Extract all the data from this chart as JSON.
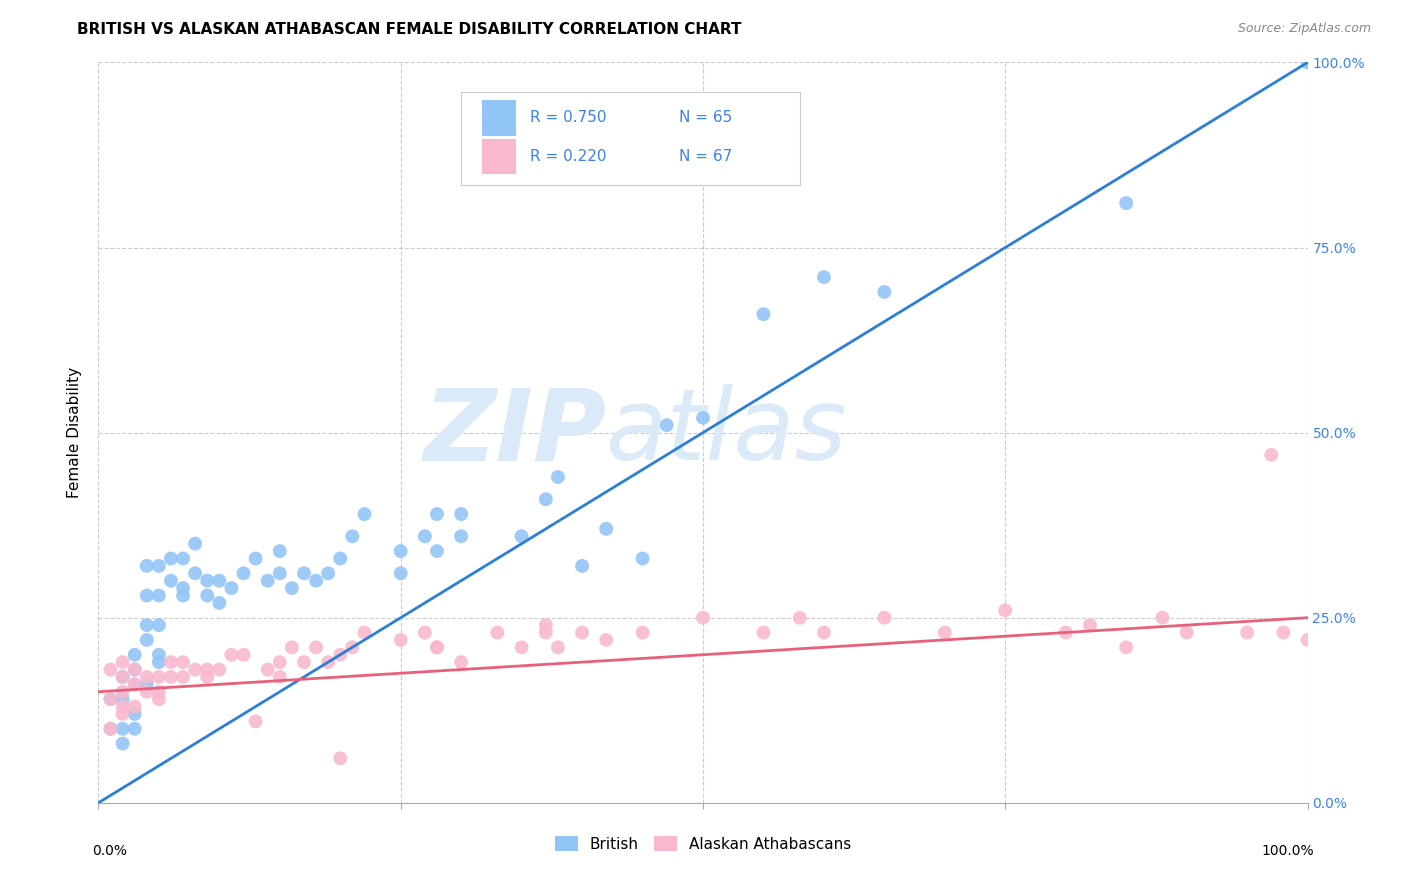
{
  "title": "BRITISH VS ALASKAN ATHABASCAN FEMALE DISABILITY CORRELATION CHART",
  "source": "Source: ZipAtlas.com",
  "ylabel": "Female Disability",
  "ytick_labels": [
    "0.0%",
    "25.0%",
    "50.0%",
    "75.0%",
    "100.0%"
  ],
  "ytick_values": [
    0,
    25,
    50,
    75,
    100
  ],
  "xlim": [
    0,
    100
  ],
  "ylim": [
    0,
    100
  ],
  "british_R": "0.750",
  "british_N": "65",
  "alaskan_R": "0.220",
  "alaskan_N": "67",
  "blue_color": "#92C5F7",
  "pink_color": "#F9B8CE",
  "blue_line_color": "#2B7FD4",
  "pink_line_color": "#E8607A",
  "legend_text_color": "#3B82F6",
  "watermark_color": "#DAEAF8",
  "background_color": "#FFFFFF",
  "blue_line_x0": 0,
  "blue_line_y0": 0,
  "blue_line_x1": 100,
  "blue_line_y1": 100,
  "pink_line_x0": 0,
  "pink_line_y0": 15,
  "pink_line_x1": 100,
  "pink_line_y1": 25,
  "british_x": [
    1,
    1,
    2,
    2,
    2,
    3,
    3,
    3,
    3,
    4,
    4,
    4,
    5,
    5,
    5,
    5,
    6,
    6,
    7,
    7,
    8,
    8,
    9,
    10,
    10,
    11,
    12,
    13,
    14,
    15,
    15,
    16,
    17,
    18,
    19,
    20,
    21,
    22,
    25,
    25,
    27,
    28,
    28,
    30,
    30,
    35,
    37,
    38,
    40,
    42,
    45,
    47,
    50,
    55,
    60,
    65,
    85,
    100,
    2,
    3,
    4,
    4,
    5,
    7,
    9
  ],
  "british_y": [
    10,
    14,
    10,
    14,
    17,
    12,
    16,
    20,
    18,
    22,
    28,
    32,
    20,
    24,
    28,
    32,
    30,
    33,
    29,
    33,
    31,
    35,
    30,
    27,
    30,
    29,
    31,
    33,
    30,
    31,
    34,
    29,
    31,
    30,
    31,
    33,
    36,
    39,
    31,
    34,
    36,
    34,
    39,
    36,
    39,
    36,
    41,
    44,
    32,
    37,
    33,
    51,
    52,
    66,
    71,
    69,
    81,
    100,
    8,
    10,
    16,
    24,
    19,
    28,
    28
  ],
  "alaskan_x": [
    1,
    1,
    2,
    2,
    2,
    2,
    3,
    3,
    4,
    4,
    5,
    5,
    6,
    6,
    7,
    8,
    9,
    10,
    11,
    12,
    13,
    14,
    15,
    16,
    17,
    18,
    19,
    20,
    21,
    22,
    25,
    27,
    28,
    30,
    33,
    35,
    37,
    38,
    40,
    42,
    45,
    50,
    55,
    58,
    60,
    65,
    70,
    75,
    80,
    82,
    85,
    88,
    90,
    95,
    100,
    98,
    97,
    1,
    2,
    3,
    5,
    7,
    9,
    15,
    20,
    28,
    37
  ],
  "alaskan_y": [
    14,
    18,
    13,
    15,
    17,
    19,
    16,
    18,
    15,
    17,
    15,
    17,
    17,
    19,
    19,
    18,
    18,
    18,
    20,
    20,
    11,
    18,
    19,
    21,
    19,
    21,
    19,
    6,
    21,
    23,
    22,
    23,
    21,
    19,
    23,
    21,
    23,
    21,
    23,
    22,
    23,
    25,
    23,
    25,
    23,
    25,
    23,
    26,
    23,
    24,
    21,
    25,
    23,
    23,
    22,
    23,
    47,
    10,
    12,
    13,
    14,
    17,
    17,
    17,
    20,
    21,
    24
  ]
}
